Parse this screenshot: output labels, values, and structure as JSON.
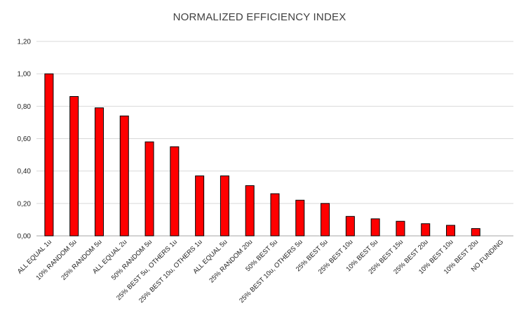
{
  "chart_data": {
    "type": "bar",
    "title": "NORMALIZED EFFICIENCY INDEX",
    "categories": [
      "ALL EQUAL  1u",
      "10% RANDOM 5u",
      "25% RANDOM 5u",
      "ALL EQUAL  2u",
      "50% RANDOM 5u",
      "25% BEST 5u, OTHERS 1u",
      "25% BEST 10u, OTHERS 1u",
      "ALL EQUAL  5u",
      "25% RANDOM 20u",
      "50% BEST  5u",
      "25% BEST 10u, OTHERS 5u",
      "25% BEST  5u",
      "25% BEST  10u",
      "10% BEST  5u",
      "25% BEST  15u",
      "25% BEST  20u",
      "10% BEST  10u",
      "10% BEST  20u",
      "NO FUNDING"
    ],
    "values": [
      1.0,
      0.86,
      0.79,
      0.74,
      0.58,
      0.55,
      0.37,
      0.37,
      0.31,
      0.26,
      0.22,
      0.2,
      0.12,
      0.105,
      0.09,
      0.075,
      0.065,
      0.045,
      0.0
    ],
    "ylim": [
      0,
      1.2
    ],
    "yticks": [
      "0,00",
      "0,20",
      "0,40",
      "0,60",
      "0,80",
      "1,00",
      "1,20"
    ],
    "grid": true,
    "bar_color": "#ff0000",
    "bar_edge_color": "#000000",
    "grid_color": "#d9d9d9"
  }
}
